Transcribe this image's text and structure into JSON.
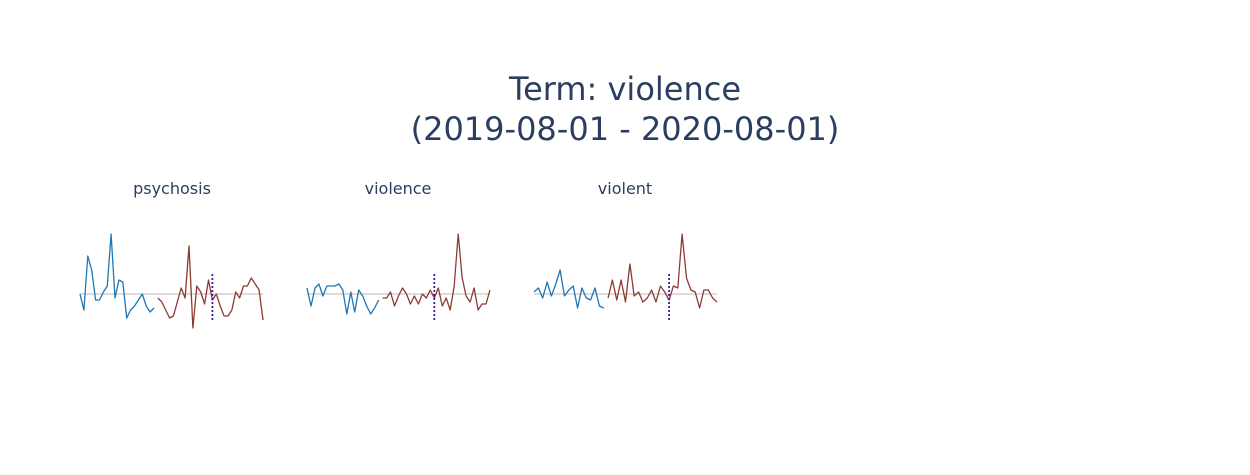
{
  "title": {
    "line1": "Term: violence",
    "line2": "(2019-08-01 - 2020-08-01)"
  },
  "colors": {
    "before": "#1f77b4",
    "after": "#8c3b33",
    "baseline": "#c8c8c8",
    "event_marker": "#3b1aa8"
  },
  "chart_data": [
    {
      "type": "line",
      "title": "psychosis",
      "grid": false,
      "axes_visible": false,
      "event_marker_index": 34,
      "baseline": 0,
      "ylim": [
        -1.6,
        3.2
      ],
      "series": [
        {
          "values": [
            0.0,
            -0.8,
            1.9,
            1.2,
            -0.3,
            -0.3,
            0.1,
            0.4,
            3.0,
            -0.2,
            0.7,
            0.6,
            -1.2,
            -0.8,
            -0.6,
            -0.3,
            0.0,
            -0.6,
            -0.9,
            -0.7
          ]
        },
        {
          "values": [
            -0.2,
            -0.4,
            -0.8,
            -1.2,
            -1.1,
            -0.4,
            0.3,
            -0.2,
            2.4,
            -1.7,
            0.4,
            0.1,
            -0.5,
            0.7,
            -0.3,
            0.0,
            -0.6,
            -1.1,
            -1.1,
            -0.8,
            0.1,
            -0.2,
            0.4,
            0.4,
            0.8,
            0.5,
            0.2,
            -1.3
          ]
        }
      ]
    },
    {
      "type": "line",
      "title": "violence",
      "grid": false,
      "axes_visible": false,
      "event_marker_index": 32,
      "baseline": 0,
      "ylim": [
        -1.6,
        3.2
      ],
      "series": [
        {
          "values": [
            0.3,
            -0.6,
            0.3,
            0.5,
            -0.1,
            0.4,
            0.4,
            0.4,
            0.5,
            0.2,
            -1.0,
            0.1,
            -0.9,
            0.2,
            -0.1,
            -0.6,
            -1.0,
            -0.7,
            -0.3
          ]
        },
        {
          "values": [
            -0.2,
            -0.2,
            0.1,
            -0.6,
            -0.1,
            0.3,
            0.0,
            -0.5,
            -0.1,
            -0.5,
            0.0,
            -0.2,
            0.2,
            -0.2,
            0.3,
            -0.6,
            -0.2,
            -0.8,
            0.4,
            3.0,
            0.8,
            -0.1,
            -0.4,
            0.3,
            -0.8,
            -0.5,
            -0.5,
            0.2
          ]
        }
      ]
    },
    {
      "type": "line",
      "title": "violent",
      "grid": false,
      "axes_visible": false,
      "event_marker_index": 31,
      "baseline": 0,
      "ylim": [
        -1.6,
        3.2
      ],
      "series": [
        {
          "values": [
            0.1,
            0.3,
            -0.2,
            0.6,
            -0.1,
            0.5,
            1.2,
            -0.1,
            0.2,
            0.4,
            -0.7,
            0.3,
            -0.2,
            -0.3,
            0.3,
            -0.6,
            -0.7
          ]
        },
        {
          "values": [
            -0.2,
            0.7,
            -0.3,
            0.7,
            -0.4,
            1.5,
            -0.1,
            0.1,
            -0.4,
            -0.2,
            0.2,
            -0.4,
            0.4,
            0.1,
            -0.3,
            0.4,
            0.3,
            3.0,
            0.8,
            0.2,
            0.1,
            -0.7,
            0.2,
            0.2,
            -0.2,
            -0.4
          ]
        }
      ]
    }
  ]
}
